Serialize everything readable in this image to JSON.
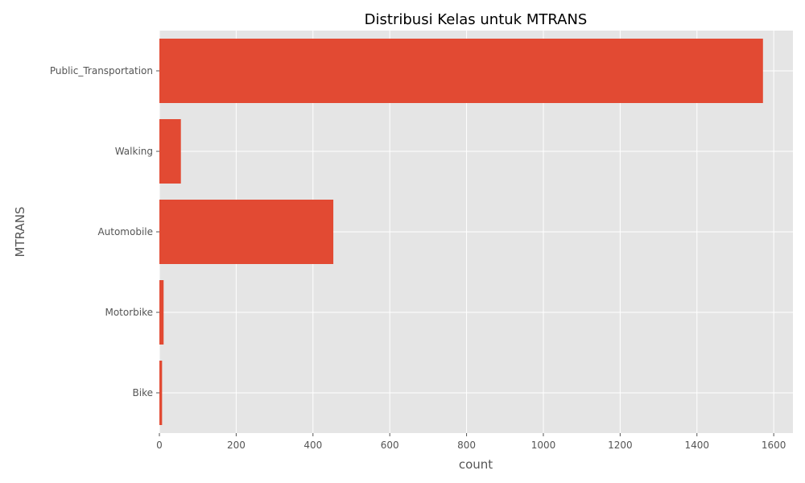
{
  "chart_data": {
    "type": "bar",
    "orientation": "horizontal",
    "title": "Distribusi Kelas untuk MTRANS",
    "xlabel": "count",
    "ylabel": "MTRANS",
    "categories": [
      "Public_Transportation",
      "Walking",
      "Automobile",
      "Motorbike",
      "Bike"
    ],
    "values": [
      1572,
      56,
      453,
      11,
      7
    ],
    "xlim": [
      0,
      1650
    ],
    "xticks": [
      0,
      200,
      400,
      600,
      800,
      1000,
      1200,
      1400,
      1600
    ],
    "grid": true,
    "legend": "none",
    "colors": {
      "bar": "#E24A33",
      "panel": "#E5E5E5",
      "grid": "#FFFFFF",
      "text": "#555555",
      "title": "#000000"
    }
  }
}
